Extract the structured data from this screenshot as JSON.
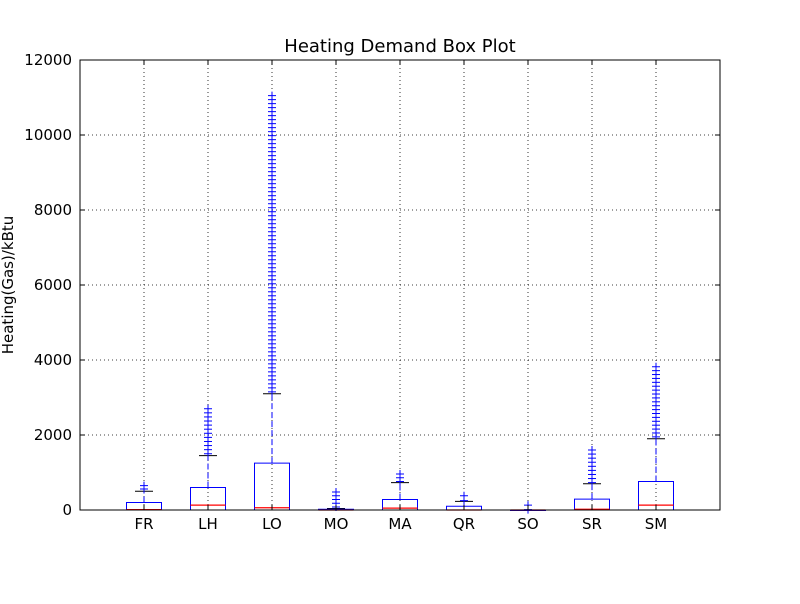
{
  "chart_data": {
    "type": "box",
    "title": "Heating Demand Box Plot",
    "xlabel": "",
    "ylabel": "Heating(Gas)/kBtu",
    "ylim": [
      0,
      12000
    ],
    "yticks": [
      0,
      2000,
      4000,
      6000,
      8000,
      10000,
      12000
    ],
    "grid": true,
    "colors": {
      "box": "#0000ff",
      "median": "#ff0000",
      "whisker": "#0000ff",
      "flier": "#0000ff"
    },
    "categories": [
      "FR",
      "LH",
      "LO",
      "MO",
      "MA",
      "QR",
      "SO",
      "SR",
      "SM"
    ],
    "boxes": [
      {
        "category": "FR",
        "whisker_low": 0,
        "q1": 0,
        "median": 10,
        "q3": 200,
        "whisker_high": 500,
        "outlier_min": 560,
        "outlier_max": 650
      },
      {
        "category": "LH",
        "whisker_low": 0,
        "q1": 0,
        "median": 130,
        "q3": 600,
        "whisker_high": 1450,
        "outlier_min": 1500,
        "outlier_max": 2700
      },
      {
        "category": "LO",
        "whisker_low": 0,
        "q1": 0,
        "median": 60,
        "q3": 1250,
        "whisker_high": 3100,
        "outlier_min": 3150,
        "outlier_max": 11050
      },
      {
        "category": "MO",
        "whisker_low": 0,
        "q1": 0,
        "median": 0,
        "q3": 20,
        "whisker_high": 40,
        "outlier_min": 80,
        "outlier_max": 480
      },
      {
        "category": "MA",
        "whisker_low": 0,
        "q1": 0,
        "median": 50,
        "q3": 280,
        "whisker_high": 730,
        "outlier_min": 760,
        "outlier_max": 960
      },
      {
        "category": "QR",
        "whisker_low": 0,
        "q1": 0,
        "median": 0,
        "q3": 100,
        "whisker_high": 230,
        "outlier_min": 250,
        "outlier_max": 380
      },
      {
        "category": "SO",
        "whisker_low": 0,
        "q1": 0,
        "median": 0,
        "q3": 0,
        "whisker_high": 0,
        "outlier_min": 10,
        "outlier_max": 130
      },
      {
        "category": "SR",
        "whisker_low": 0,
        "q1": 0,
        "median": 20,
        "q3": 290,
        "whisker_high": 700,
        "outlier_min": 730,
        "outlier_max": 1600
      },
      {
        "category": "SM",
        "whisker_low": 0,
        "q1": 0,
        "median": 130,
        "q3": 760,
        "whisker_high": 1900,
        "outlier_min": 1950,
        "outlier_max": 3820
      }
    ]
  }
}
